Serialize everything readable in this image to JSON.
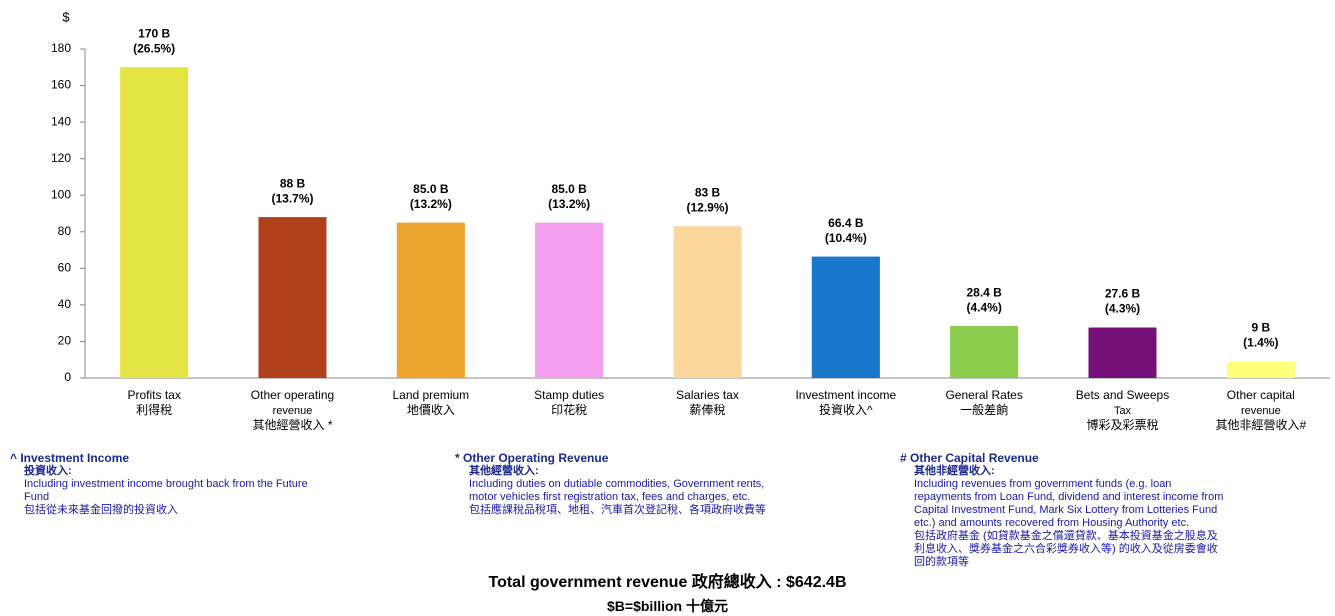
{
  "chart_data": {
    "type": "bar",
    "y_label": "$",
    "categories": [
      [
        "Profits tax",
        "利得稅"
      ],
      [
        "Other operating",
        "revenue",
        "其他經營收入 *"
      ],
      [
        "Land premium",
        "地價收入"
      ],
      [
        "Stamp duties",
        "印花稅"
      ],
      [
        "Salaries tax",
        "薪俸稅"
      ],
      [
        "Investment income",
        "投資收入^"
      ],
      [
        "General Rates",
        "一般差餉"
      ],
      [
        "Bets and Sweeps",
        "Tax",
        "博彩及彩票稅"
      ],
      [
        "Other capital",
        "revenue",
        "其他非經營收入#"
      ]
    ],
    "values": [
      170,
      88,
      85.0,
      85.0,
      83,
      66.4,
      28.4,
      27.6,
      9
    ],
    "value_labels": [
      "170 B",
      "88 B",
      "85.0 B",
      "85.0 B",
      "83 B",
      "66.4 B",
      "28.4 B",
      "27.6 B",
      "9 B"
    ],
    "shares": [
      26.5,
      13.7,
      13.2,
      13.2,
      12.9,
      10.4,
      4.4,
      4.3,
      1.4
    ],
    "share_labels": [
      "(26.5%)",
      "(13.7%)",
      "(13.2%)",
      "(13.2%)",
      "(12.9%)",
      "(10.4%)",
      "(4.4%)",
      "(4.3%)",
      "(1.4%)"
    ],
    "colors": [
      "#e4e445",
      "#b0401a",
      "#eea52e",
      "#f49ef0",
      "#fbd79c",
      "#1878cc",
      "#8ccc4c",
      "#741078",
      "#ffff7a"
    ],
    "ylim": [
      0,
      180
    ],
    "yticks": [
      0,
      20,
      40,
      60,
      80,
      100,
      120,
      140,
      160,
      180
    ]
  },
  "notes": [
    {
      "heading": "^ Investment Income",
      "subheading": "投資收入:",
      "lines": [
        "Including investment income brought back from the Future",
        "Fund",
        "包括從未來基金回撥的投資收入"
      ]
    },
    {
      "heading": "* Other Operating Revenue",
      "subheading": "其他經營收入:",
      "lines": [
        "Including duties on dutiable commodities, Government rents,",
        "motor vehicles first registration tax, fees and charges, etc.",
        "包括應課稅品稅項、地租、汽車首次登記稅、各項政府收費等"
      ]
    },
    {
      "heading": "#  Other Capital Revenue",
      "subheading": "其他非經營收入:",
      "lines": [
        "Including revenues from government funds (e.g. loan",
        "repayments from Loan Fund, dividend and interest income from",
        "Capital Investment Fund, Mark Six Lottery from Lotteries Fund",
        "etc.) and amounts recovered from Housing Authority etc.",
        "包括政府基金 (如貸款基金之償還貸款、基本投資基金之股息及",
        "利息收入、獎券基金之六合彩獎券收入等) 的收入及從房委會收",
        "回的款項等"
      ]
    }
  ],
  "total": "Total government  revenue  政府總收入 : $642.4B",
  "unit_note": "$B=$billion  十億元"
}
